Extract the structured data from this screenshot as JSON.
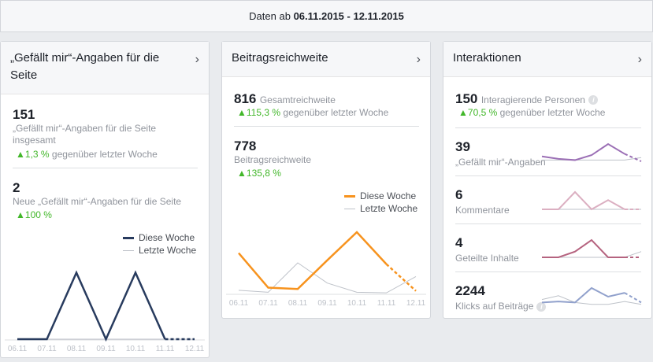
{
  "header": {
    "prefix": "Daten ab",
    "range": "06.11.2015 - 12.11.2015"
  },
  "dates": [
    "06.11",
    "07.11",
    "08.11",
    "09.11",
    "10.11",
    "11.11",
    "12.11"
  ],
  "legend": {
    "this_week": "Diese Woche",
    "last_week": "Letzte Woche"
  },
  "likes_card": {
    "title": "„Gefällt mir“-Angaben für die Seite",
    "total": "151",
    "total_label": "„Gefällt mir“-Angaben für die Seite insgesamt",
    "total_change": "1,3 %",
    "change_suffix": "gegenüber letzter Woche",
    "new": "2",
    "new_label": "Neue „Gefällt mir“-Angaben für die Seite",
    "new_change": "100 %",
    "color": "#283b5e",
    "chart": {
      "this_week": [
        0,
        0,
        2,
        0,
        2,
        0,
        0
      ],
      "last_week": [
        0,
        0,
        0,
        0,
        0,
        0,
        0
      ],
      "max": 2.2
    }
  },
  "reach_card": {
    "title": "Beitragsreichweite",
    "total": "816",
    "total_label": "Gesamtreichweite",
    "total_change": "115,3 %",
    "change_suffix": "gegenüber letzter Woche",
    "post": "778",
    "post_label": "Beitragsreichweite",
    "post_change": "135,8 %",
    "color": "#f7931e",
    "chart": {
      "this_week": [
        62,
        9,
        7,
        51,
        94,
        45,
        4
      ],
      "last_week": [
        5,
        2,
        47,
        16,
        2,
        1,
        26
      ],
      "max": 100
    }
  },
  "interactions_card": {
    "title": "Interaktionen",
    "total": "150",
    "total_label": "Interagierende Personen",
    "total_change": "70,5 %",
    "change_suffix": "gegenüber letzter Woche",
    "rows": [
      {
        "value": "39",
        "label": "„Gefällt mir“-Angaben",
        "color": "#9b6fb5",
        "this_week": [
          4,
          2,
          1,
          5,
          14,
          6,
          0
        ],
        "last_week": [
          1,
          1,
          1,
          1,
          1,
          1,
          3
        ]
      },
      {
        "value": "6",
        "label": "Kommentare",
        "color": "#dbafc1",
        "this_week": [
          0,
          0,
          3,
          0,
          1.6,
          0,
          0
        ],
        "last_week": [
          0,
          0,
          0,
          0,
          0,
          0,
          0
        ]
      },
      {
        "value": "4",
        "label": "Geteilte Inhalte",
        "color": "#b5637f",
        "this_week": [
          0,
          0,
          1,
          3,
          0,
          0,
          0
        ],
        "last_week": [
          0,
          0,
          0,
          0,
          0,
          0,
          1
        ]
      },
      {
        "value": "2244",
        "label": "Klicks auf Beiträge",
        "color": "#91a1cc",
        "this_week": [
          3,
          4,
          3,
          18,
          9,
          13,
          3
        ],
        "last_week": [
          6,
          10,
          3,
          1,
          1,
          4,
          1
        ]
      }
    ]
  }
}
